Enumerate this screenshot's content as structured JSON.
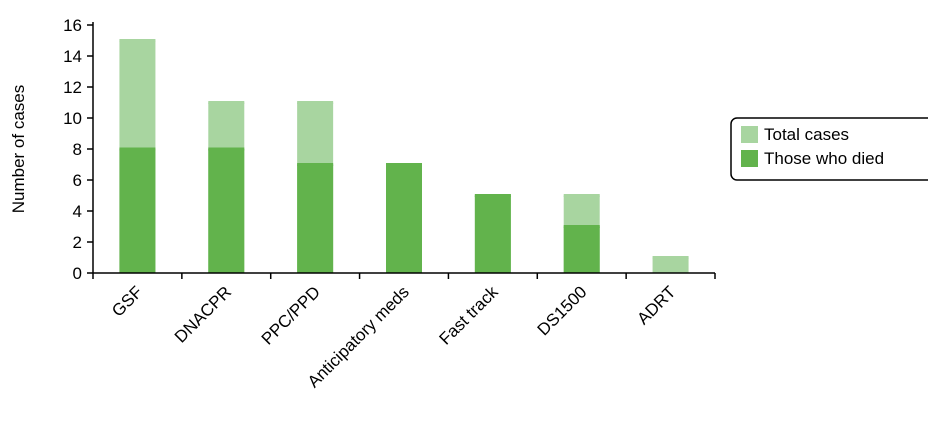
{
  "chart_data": {
    "type": "bar",
    "stacked": false,
    "overlapping": true,
    "categories": [
      "GSF",
      "DNACPR",
      "PPC/PPD",
      "Anticipatory meds",
      "Fast track",
      "DS1500",
      "ADRT"
    ],
    "series": [
      {
        "name": "Total cases",
        "values": [
          15,
          11,
          11,
          7,
          5,
          5,
          1
        ],
        "color": "#a8d5a0"
      },
      {
        "name": "Those who died",
        "values": [
          8,
          8,
          7,
          7,
          5,
          3,
          0
        ],
        "color": "#62b34c"
      }
    ],
    "title": "",
    "xlabel": "",
    "ylabel": "Number of cases",
    "ylim": [
      0,
      16
    ],
    "yticks": [
      0,
      2,
      4,
      6,
      8,
      10,
      12,
      14,
      16
    ],
    "grid": false,
    "legend_position": "right"
  }
}
